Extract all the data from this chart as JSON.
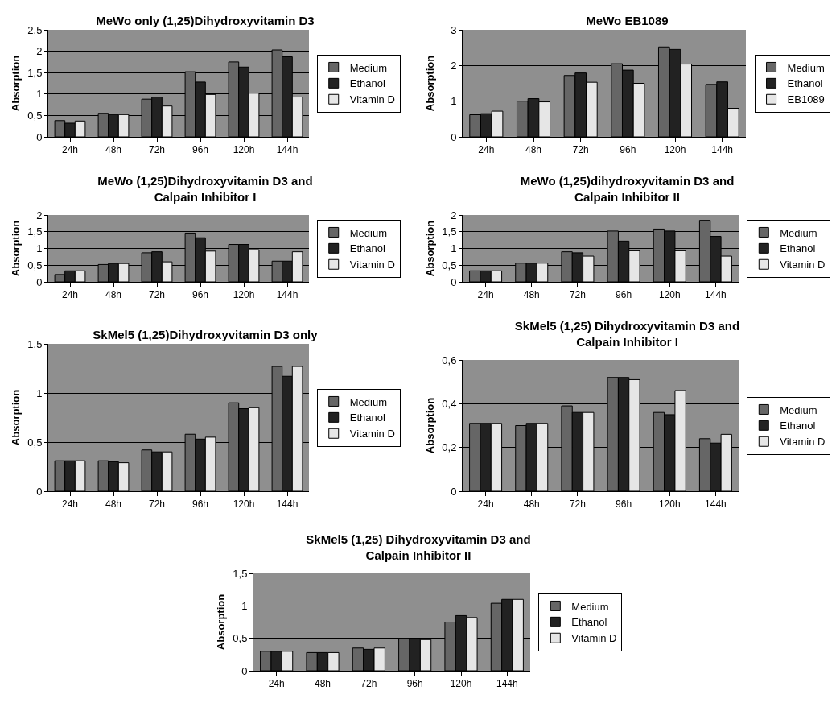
{
  "chart_data": [
    {
      "type": "bar",
      "title": "MeWo only (1,25)Dihydroxyvitamin D3",
      "ylabel": "Absorption",
      "categories": [
        "24h",
        "48h",
        "72h",
        "96h",
        "120h",
        "144h"
      ],
      "ylim": [
        0,
        2.5
      ],
      "yticks": [
        0,
        {
          "value": 0.5,
          "label": "0,5"
        },
        1,
        {
          "value": 1.5,
          "label": "1,5"
        },
        2,
        {
          "value": 2.5,
          "label": "2,5"
        }
      ],
      "grid": "y",
      "legend": "right",
      "series": [
        {
          "name": "Medium",
          "color": "#666666",
          "values": [
            0.38,
            0.55,
            0.88,
            1.52,
            1.75,
            2.03
          ]
        },
        {
          "name": "Ethanol",
          "color": "#222222",
          "values": [
            0.32,
            0.52,
            0.93,
            1.28,
            1.63,
            1.87
          ]
        },
        {
          "name": "Vitamin D",
          "color": "#e6e6e6",
          "values": [
            0.37,
            0.52,
            0.72,
            0.99,
            1.02,
            0.93
          ]
        }
      ]
    },
    {
      "type": "bar",
      "title": "MeWo EB1089",
      "ylabel": "Absorption",
      "categories": [
        "24h",
        "48h",
        "72h",
        "96h",
        "120h",
        "144h"
      ],
      "ylim": [
        0,
        3
      ],
      "yticks": [
        0,
        1,
        2,
        3
      ],
      "grid": "y",
      "legend": "right",
      "series": [
        {
          "name": "Medium",
          "color": "#666666",
          "values": [
            0.62,
            1.0,
            1.72,
            2.05,
            2.52,
            1.47
          ]
        },
        {
          "name": "Ethanol",
          "color": "#222222",
          "values": [
            0.65,
            1.07,
            1.79,
            1.87,
            2.45,
            1.54
          ]
        },
        {
          "name": "EB1089",
          "color": "#e6e6e6",
          "values": [
            0.72,
            0.98,
            1.53,
            1.5,
            2.04,
            0.8
          ]
        }
      ]
    },
    {
      "type": "bar",
      "title": "MeWo (1,25)Dihydroxyvitamin D3 and\nCalpain Inhibitor I",
      "ylabel": "Absorption",
      "categories": [
        "24h",
        "48h",
        "72h",
        "96h",
        "120h",
        "144h"
      ],
      "ylim": [
        0,
        2
      ],
      "yticks": [
        0,
        {
          "value": 0.5,
          "label": "0,5"
        },
        1,
        {
          "value": 1.5,
          "label": "1,5"
        },
        2
      ],
      "grid": "y",
      "legend": "right",
      "series": [
        {
          "name": "Medium",
          "color": "#666666",
          "values": [
            0.22,
            0.52,
            0.87,
            1.46,
            1.12,
            0.62
          ]
        },
        {
          "name": "Ethanol",
          "color": "#222222",
          "values": [
            0.33,
            0.55,
            0.9,
            1.32,
            1.12,
            0.62
          ]
        },
        {
          "name": "Vitamin D",
          "color": "#e6e6e6",
          "values": [
            0.33,
            0.55,
            0.6,
            0.92,
            0.96,
            0.9
          ]
        }
      ]
    },
    {
      "type": "bar",
      "title": "MeWo (1,25)dihydroxyvitamin D3 and\nCalpain Inhibitor II",
      "ylabel": "Absorption",
      "categories": [
        "24h",
        "48h",
        "72h",
        "96h",
        "120h",
        "144h"
      ],
      "ylim": [
        0,
        2
      ],
      "yticks": [
        0,
        {
          "value": 0.5,
          "label": "0,5"
        },
        1,
        {
          "value": 1.5,
          "label": "1,5"
        },
        2
      ],
      "grid": "y",
      "legend": "right",
      "series": [
        {
          "name": "Medium",
          "color": "#666666",
          "values": [
            0.33,
            0.56,
            0.9,
            1.52,
            1.58,
            1.84
          ]
        },
        {
          "name": "Ethanol",
          "color": "#222222",
          "values": [
            0.33,
            0.56,
            0.87,
            1.22,
            1.52,
            1.36
          ]
        },
        {
          "name": "Vitamin D",
          "color": "#e6e6e6",
          "values": [
            0.33,
            0.56,
            0.77,
            0.93,
            0.93,
            0.77
          ]
        }
      ]
    },
    {
      "type": "bar",
      "title": "SkMel5 (1,25)Dihydroxyvitamin D3 only",
      "ylabel": "Absorption",
      "categories": [
        "24h",
        "48h",
        "72h",
        "96h",
        "120h",
        "144h"
      ],
      "ylim": [
        0,
        1.5
      ],
      "yticks": [
        0,
        {
          "value": 0.5,
          "label": "0,5"
        },
        1,
        {
          "value": 1.5,
          "label": "1,5"
        }
      ],
      "grid": "y",
      "legend": "right",
      "series": [
        {
          "name": "Medium",
          "color": "#666666",
          "values": [
            0.31,
            0.31,
            0.42,
            0.58,
            0.9,
            1.27
          ]
        },
        {
          "name": "Ethanol",
          "color": "#222222",
          "values": [
            0.31,
            0.3,
            0.4,
            0.53,
            0.84,
            1.17
          ]
        },
        {
          "name": "Vitamin D",
          "color": "#e6e6e6",
          "values": [
            0.31,
            0.29,
            0.4,
            0.55,
            0.85,
            1.27
          ]
        }
      ]
    },
    {
      "type": "bar",
      "title": "SkMel5 (1,25) Dihydroxyvitamin D3 and\nCalpain Inhibitor I",
      "ylabel": "Absorption",
      "categories": [
        "24h",
        "48h",
        "72h",
        "96h",
        "120h",
        "144h"
      ],
      "ylim": [
        0,
        0.6
      ],
      "yticks": [
        0,
        {
          "value": 0.2,
          "label": "0,2"
        },
        {
          "value": 0.4,
          "label": "0,4"
        },
        {
          "value": 0.6,
          "label": "0,6"
        }
      ],
      "grid": "y",
      "legend": "right",
      "series": [
        {
          "name": "Medium",
          "color": "#666666",
          "values": [
            0.31,
            0.3,
            0.39,
            0.52,
            0.36,
            0.24
          ]
        },
        {
          "name": "Ethanol",
          "color": "#222222",
          "values": [
            0.31,
            0.31,
            0.36,
            0.52,
            0.35,
            0.22
          ]
        },
        {
          "name": "Vitamin D",
          "color": "#e6e6e6",
          "values": [
            0.31,
            0.31,
            0.36,
            0.51,
            0.46,
            0.26
          ]
        }
      ]
    },
    {
      "type": "bar",
      "title": "SkMel5 (1,25) Dihydroxyvitamin D3 and\nCalpain Inhibitor II",
      "ylabel": "Absorption",
      "categories": [
        "24h",
        "48h",
        "72h",
        "96h",
        "120h",
        "144h"
      ],
      "ylim": [
        0,
        1.5
      ],
      "yticks": [
        0,
        {
          "value": 0.5,
          "label": "0,5"
        },
        1,
        {
          "value": 1.5,
          "label": "1,5"
        }
      ],
      "grid": "y",
      "legend": "right",
      "series": [
        {
          "name": "Medium",
          "color": "#666666",
          "values": [
            0.3,
            0.28,
            0.35,
            0.5,
            0.75,
            1.04
          ]
        },
        {
          "name": "Ethanol",
          "color": "#222222",
          "values": [
            0.3,
            0.28,
            0.33,
            0.5,
            0.85,
            1.1
          ]
        },
        {
          "name": "Vitamin D",
          "color": "#e6e6e6",
          "values": [
            0.3,
            0.28,
            0.35,
            0.48,
            0.82,
            1.1
          ]
        }
      ]
    }
  ]
}
